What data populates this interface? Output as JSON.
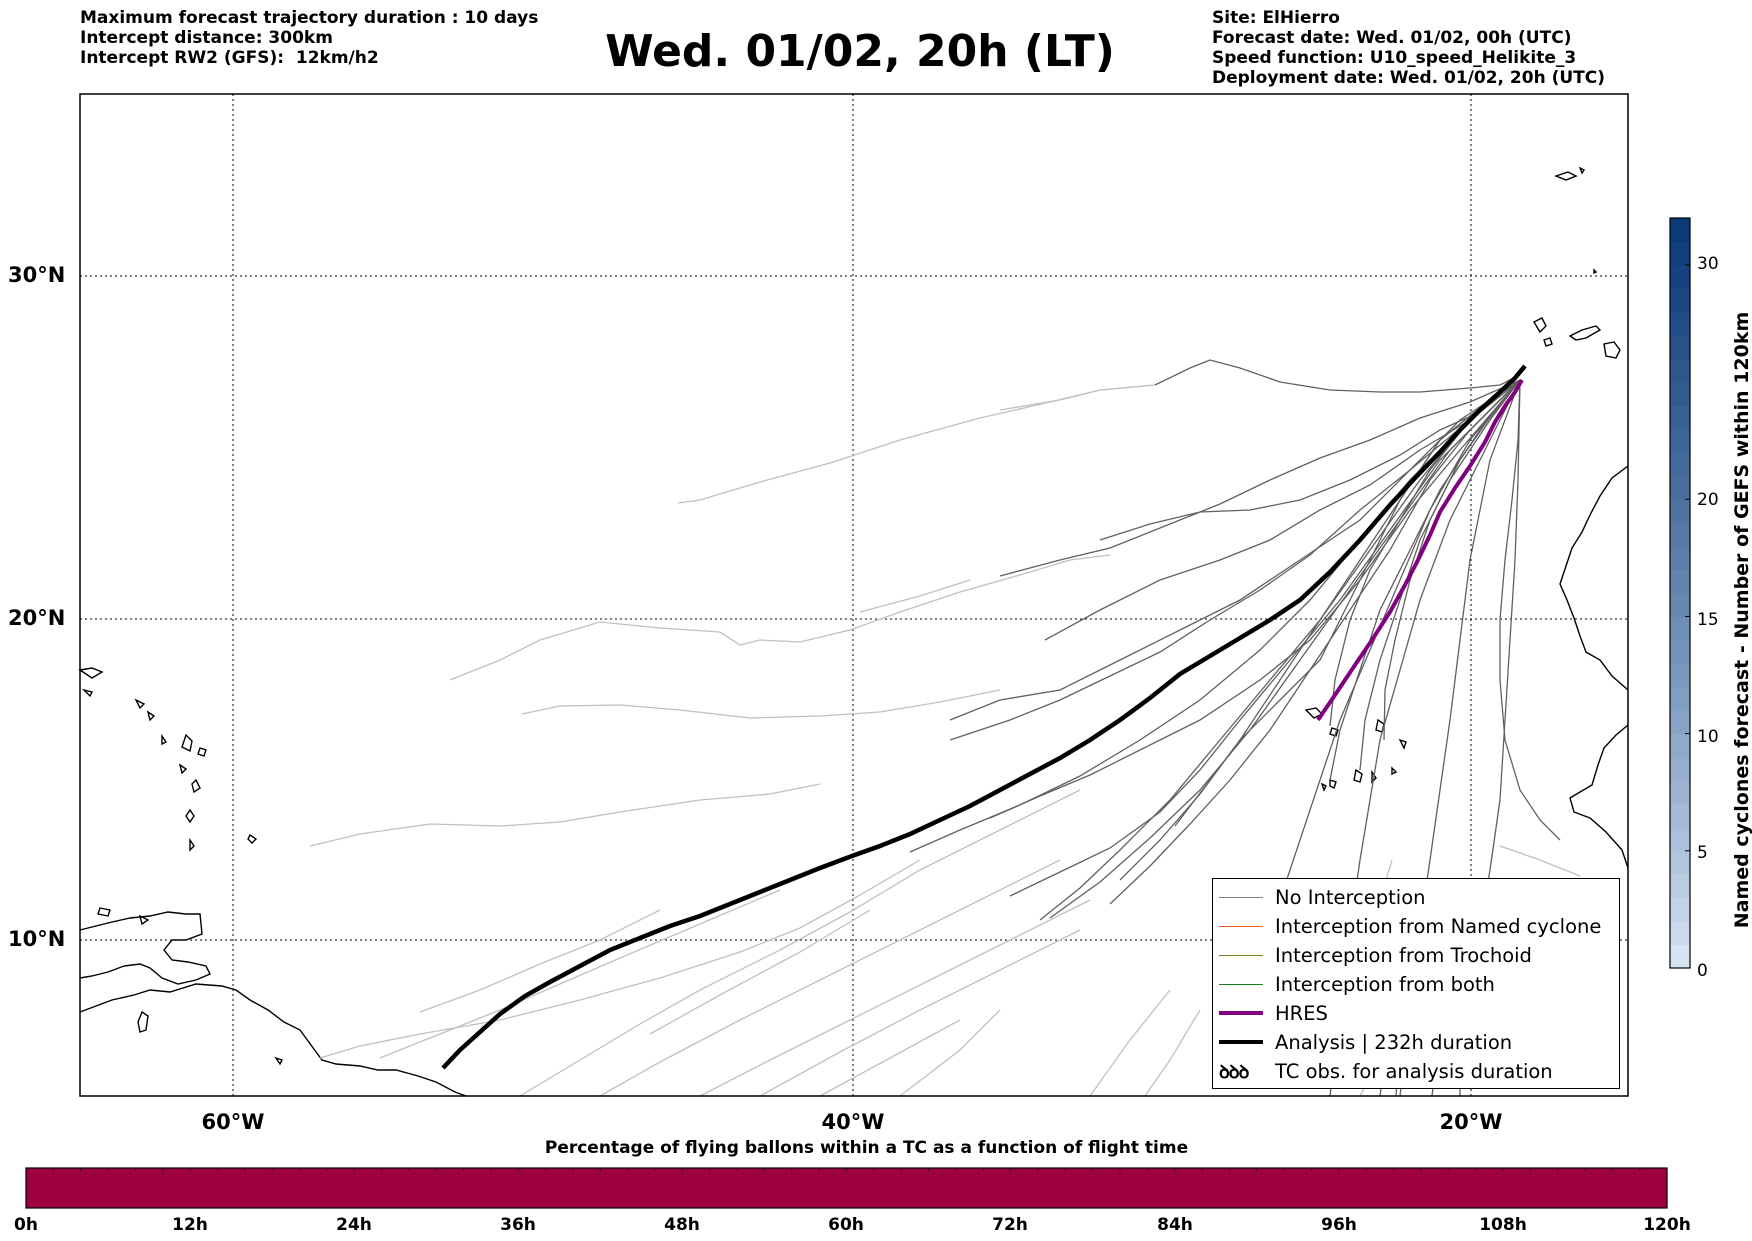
{
  "header": {
    "left": [
      "Maximum forecast trajectory duration : 10 days",
      "Intercept distance: 300km",
      "Intercept RW2 (GFS):  12km/h2"
    ],
    "title": "Wed. 01/02, 20h (LT)",
    "right": [
      "Site: ElHierro",
      "Forecast date: Wed. 01/02, 00h (UTC)",
      "Speed function: U10_speed_Helikite_3",
      "Deployment date: Wed. 01/02, 20h (UTC)"
    ]
  },
  "map": {
    "lat_labels": [
      "30°N",
      "20°N",
      "10°N"
    ],
    "lon_labels": [
      "60°W",
      "40°W",
      "20°W"
    ],
    "extent": {
      "lon_min": -65,
      "lon_max": -15,
      "lat_min": 5.4,
      "lat_max": 34.7
    },
    "colors": {
      "no_interception": "#606060",
      "faded": "#c0c0c0",
      "hres": "#800080",
      "analysis": "#000000",
      "named_cyclone": "#e8601c",
      "trochoid": "#7f7f1f",
      "both": "#1f7f1f"
    }
  },
  "legend": {
    "items": [
      {
        "label": "No Interception",
        "color": "#808080",
        "width": 1.2
      },
      {
        "label": "Interception from Named cyclone",
        "color": "#e8601c",
        "width": 1.2
      },
      {
        "label": "Interception from Trochoid",
        "color": "#7f7f1f",
        "width": 1.2
      },
      {
        "label": "Interception from both",
        "color": "#1f7f1f",
        "width": 1.2
      },
      {
        "label": "HRES",
        "color": "#800080",
        "width": 4
      },
      {
        "label": "Analysis | 232h duration",
        "color": "#000000",
        "width": 4
      }
    ],
    "tc_obs_label": "TC obs. for analysis duration",
    "tc_obs_glyph": "ꝺꝺꝺ"
  },
  "colorbar": {
    "title": "Named cyclones forecast - Number of GEFS within 120km",
    "ticks": [
      "0",
      "5",
      "10",
      "15",
      "20",
      "30"
    ],
    "tick_values": [
      0,
      5,
      10,
      15,
      20,
      30
    ],
    "max": 32,
    "color_low": "#d6e4f4",
    "color_high": "#0b3a78"
  },
  "timebar": {
    "title": "Percentage of flying ballons within a TC as a function of flight time",
    "ticks": [
      "0h",
      "12h",
      "24h",
      "36h",
      "48h",
      "60h",
      "72h",
      "84h",
      "96h",
      "108h",
      "120h"
    ],
    "fill_color": "#9e0040"
  }
}
